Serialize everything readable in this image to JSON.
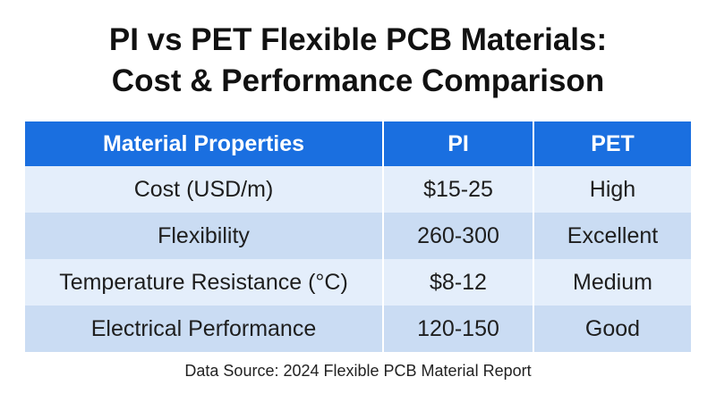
{
  "title_lines": [
    "PI vs PET Flexible PCB Materials:",
    "Cost & Performance Comparison"
  ],
  "chart_data": {
    "type": "table",
    "columns": [
      "Material Properties",
      "PI",
      "PET"
    ],
    "rows": [
      [
        "Cost (USD/m)",
        "$15-25",
        "High"
      ],
      [
        "Flexibility",
        "260-300",
        "Excellent"
      ],
      [
        "Temperature Resistance (°C)",
        "$8-12",
        "Medium"
      ],
      [
        "Electrical Performance",
        "120-150",
        "Good"
      ]
    ]
  },
  "source": "Data Source: 2024 Flexible PCB Material Report",
  "colors": {
    "header_bg": "#1a6fe0",
    "row_light": "#e4eefb",
    "row_dark": "#cadcf3"
  }
}
